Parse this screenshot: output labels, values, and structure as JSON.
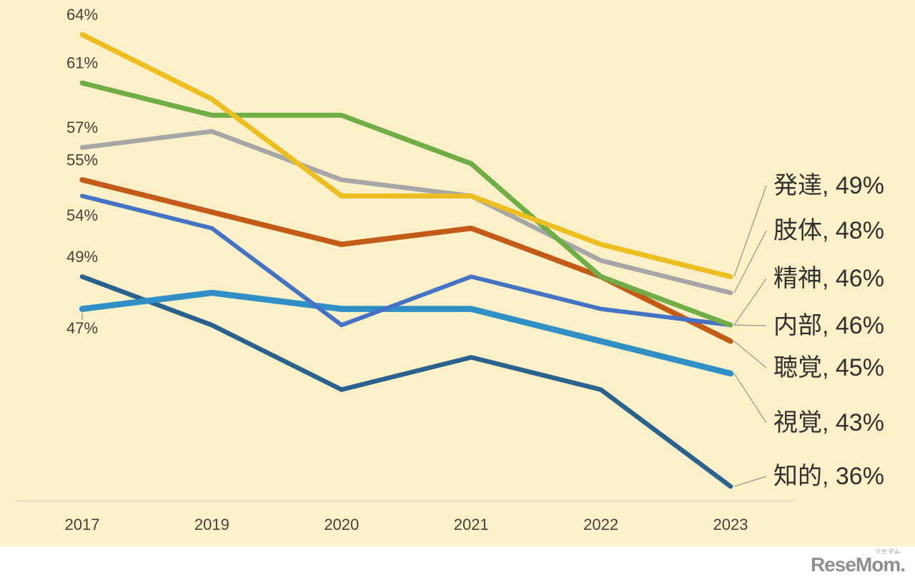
{
  "chart_data": {
    "type": "line",
    "x": [
      "2017",
      "2019",
      "2020",
      "2021",
      "2022",
      "2023"
    ],
    "series": [
      {
        "name": "発達",
        "color": "#EDBE20",
        "width": 7,
        "values": [
          64,
          60,
          54,
          54,
          51,
          49
        ],
        "start_label": "64%",
        "end_label": "発達, 49%"
      },
      {
        "name": "肢体",
        "color": "#A6A6A6",
        "width": 6.5,
        "values": [
          57,
          58,
          55,
          54,
          50,
          48
        ],
        "start_label": "57%",
        "end_label": "肢体, 48%"
      },
      {
        "name": "精神",
        "color": "#70AD47",
        "width": 7,
        "values": [
          61,
          59,
          59,
          56,
          49,
          46
        ],
        "start_label": "61%",
        "end_label": "精神, 46%"
      },
      {
        "name": "内部",
        "color": "#4472C4",
        "width": 6,
        "values": [
          54,
          52,
          46,
          49,
          47,
          46
        ],
        "start_label": "54%",
        "end_label": "内部, 46%"
      },
      {
        "name": "聴覚",
        "color": "#C35A18",
        "width": 7.5,
        "values": [
          55,
          53,
          51,
          52,
          49,
          45
        ],
        "start_label": "55%",
        "end_label": "聴覚, 45%"
      },
      {
        "name": "視覚",
        "color": "#3090C6",
        "width": 8.5,
        "values": [
          47,
          48,
          47,
          47,
          45,
          43
        ],
        "start_label": "47%",
        "end_label": "視覚, 43%"
      },
      {
        "name": "知的",
        "color": "#2A628F",
        "width": 6.5,
        "values": [
          49,
          46,
          42,
          44,
          42,
          36
        ],
        "start_label": "49%",
        "end_label": "知的, 36%"
      }
    ],
    "title": "",
    "xlabel": "",
    "ylabel": "",
    "ylim": [
      34,
      66
    ],
    "grid": "off",
    "legend_position": "end-of-line-labels-right"
  },
  "colors": {
    "background": "#FBF0C7",
    "footer_bg": "#FFFFFF",
    "axis_line": "#DCD7C8",
    "leader_line": "#A8A296",
    "label_text": "#45423C",
    "end_label_text": "#333130",
    "logo": "#8F8F8F"
  },
  "footer": {
    "logo_text": "ReseMom.",
    "logo_ruby": "リセマム"
  }
}
